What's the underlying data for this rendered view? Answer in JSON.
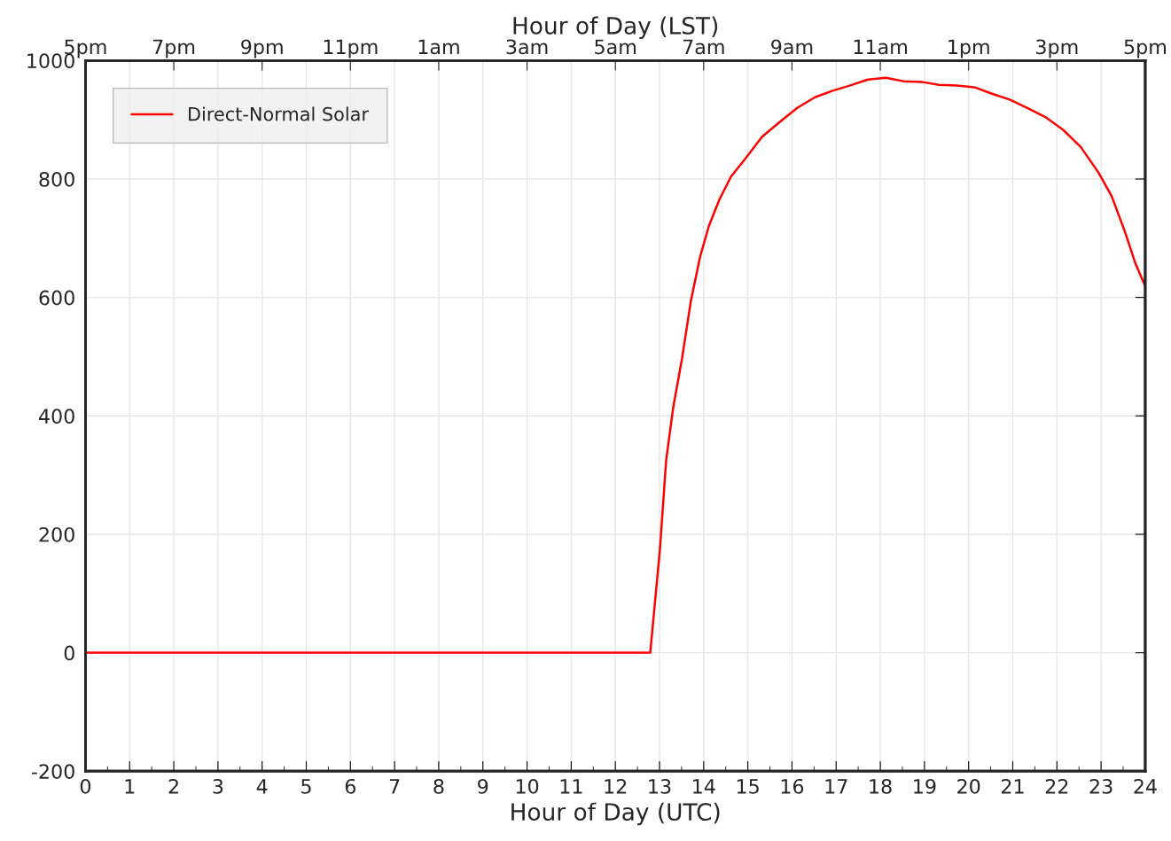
{
  "chart_data": {
    "type": "line",
    "xlabel": "Hour of Day (UTC)",
    "x2label": "Hour of Day (LST)",
    "xlim": [
      0,
      24
    ],
    "xticks": [
      0,
      1,
      2,
      3,
      4,
      5,
      6,
      7,
      8,
      9,
      10,
      11,
      12,
      13,
      14,
      15,
      16,
      17,
      18,
      19,
      20,
      21,
      22,
      23,
      24
    ],
    "annotations": [
      "5pm",
      "7pm",
      "9pm",
      "11pm",
      "1am",
      "3am",
      "5am",
      "7am",
      "9am",
      "11am",
      "1pm",
      "3pm",
      "5pm"
    ],
    "ylim": [
      -200,
      1000
    ],
    "yticks": [
      -200,
      0,
      200,
      400,
      600,
      800,
      1000
    ],
    "grid": true,
    "legend": "top left",
    "marker": "none",
    "line_style": "solid",
    "series": [
      {
        "name": "Direct-Normal Solar",
        "color": "#ff0000",
        "x": [
          0,
          12.79,
          13.01,
          13.15,
          13.31,
          13.51,
          13.71,
          13.92,
          14.12,
          14.36,
          14.62,
          14.96,
          15.32,
          15.72,
          16.12,
          16.52,
          16.92,
          17.32,
          17.72,
          18.13,
          18.53,
          18.93,
          19.33,
          19.73,
          20.13,
          20.53,
          20.93,
          21.33,
          21.73,
          22.14,
          22.54,
          22.94,
          23.24,
          23.54,
          23.78,
          24
        ],
        "values": [
          0,
          0,
          175,
          325,
          414,
          497,
          594,
          669,
          721,
          766,
          804,
          836,
          871,
          896,
          920,
          938,
          949,
          958,
          968,
          971,
          965,
          964,
          959,
          958,
          955,
          944,
          934,
          920,
          905,
          883,
          854,
          811,
          771,
          711,
          657,
          619
        ]
      }
    ]
  }
}
